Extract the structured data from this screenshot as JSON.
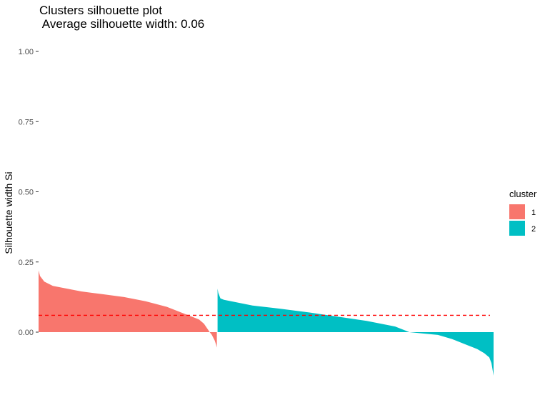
{
  "chart_data": {
    "type": "area",
    "title": "Clusters silhouette plot",
    "subtitle": " Average silhouette width: 0.06",
    "xlabel": "",
    "ylabel": "Silhouette width Si",
    "ylim": [
      -0.2,
      1.0
    ],
    "yticks": [
      "0.00",
      "0.25",
      "0.50",
      "0.75",
      "1.00"
    ],
    "ytick_values": [
      0,
      0.25,
      0.5,
      0.75,
      1.0
    ],
    "grid": false,
    "average_line": {
      "value": 0.06,
      "color": "#ff0000",
      "style": "dashed"
    },
    "legend": {
      "title": "cluster",
      "position": "right"
    },
    "series": [
      {
        "name": "1",
        "color": "#f8766d",
        "x": [
          0,
          2,
          8,
          20,
          40,
          60,
          90,
          120,
          150,
          180,
          210,
          225,
          232,
          236,
          240,
          243,
          245,
          247,
          249,
          250
        ],
        "values": [
          0.22,
          0.2,
          0.18,
          0.165,
          0.155,
          0.145,
          0.135,
          0.125,
          0.11,
          0.09,
          0.06,
          0.045,
          0.03,
          0.015,
          0.0,
          -0.01,
          -0.02,
          -0.03,
          -0.045,
          -0.055
        ]
      },
      {
        "name": "2",
        "color": "#00bfc4",
        "x": [
          251,
          252,
          255,
          260,
          270,
          300,
          340,
          380,
          420,
          460,
          500,
          520,
          540,
          560,
          580,
          600,
          615,
          625,
          632,
          635,
          637,
          638
        ],
        "values": [
          0.155,
          0.14,
          0.12,
          0.115,
          0.11,
          0.095,
          0.083,
          0.07,
          0.055,
          0.04,
          0.02,
          0.0,
          -0.005,
          -0.01,
          -0.025,
          -0.045,
          -0.06,
          -0.075,
          -0.09,
          -0.11,
          -0.14,
          -0.155
        ]
      }
    ]
  }
}
